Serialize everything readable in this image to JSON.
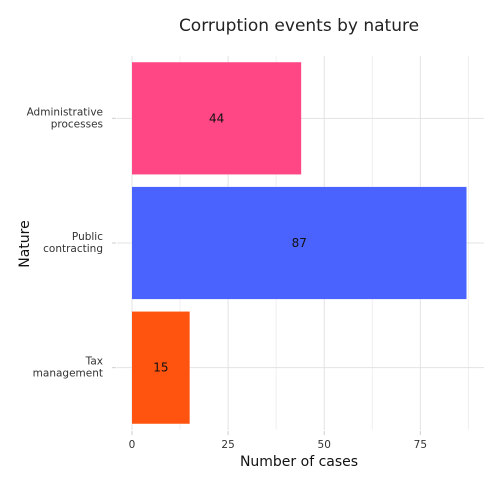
{
  "chart_data": {
    "type": "bar",
    "orientation": "horizontal",
    "title": "Corruption events by nature",
    "xlabel": "Number of cases",
    "ylabel": "Nature",
    "categories": [
      [
        "Administrative",
        "processes"
      ],
      [
        "Public",
        "contracting"
      ],
      [
        "Tax",
        "management"
      ]
    ],
    "values": [
      44,
      87,
      15
    ],
    "colors": [
      "#FF4785",
      "#4A63FF",
      "#FF5410"
    ],
    "xlim": [
      0,
      91
    ],
    "xticks": [
      0,
      25,
      50,
      75
    ],
    "grid": true,
    "legend": "none"
  }
}
